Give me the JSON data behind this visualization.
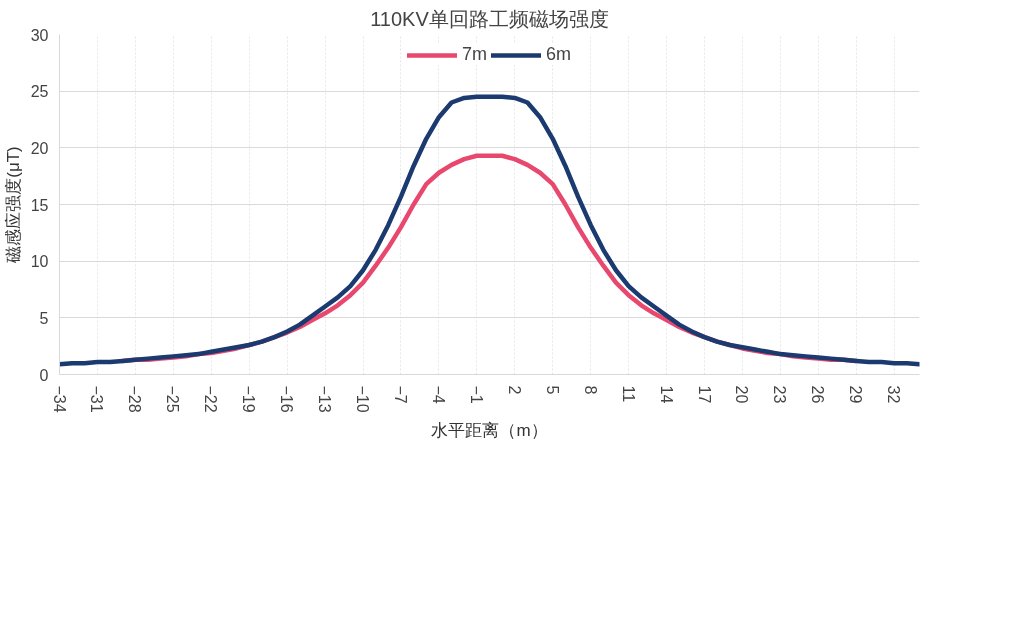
{
  "chart_data": {
    "type": "line",
    "title": "110KV单回路工频磁场强度",
    "xlabel": "水平距离（m）",
    "ylabel": "磁感应强度(μT)",
    "x": [
      -34,
      -33,
      -32,
      -31,
      -30,
      -29,
      -28,
      -27,
      -26,
      -25,
      -24,
      -23,
      -22,
      -21,
      -20,
      -19,
      -18,
      -17,
      -16,
      -15,
      -14,
      -13,
      -12,
      -11,
      -10,
      -9,
      -8,
      -7,
      -6,
      -5,
      -4,
      -3,
      -2,
      -1,
      0,
      1,
      2,
      3,
      4,
      5,
      6,
      7,
      8,
      9,
      10,
      11,
      12,
      13,
      14,
      15,
      16,
      17,
      18,
      19,
      20,
      21,
      22,
      23,
      24,
      25,
      26,
      27,
      28,
      29,
      30,
      31,
      32,
      33,
      34
    ],
    "series": [
      {
        "name": "7m",
        "color": "#e8476e",
        "values": [
          null,
          null,
          null,
          null,
          null,
          1.2,
          1.3,
          1.3,
          1.4,
          1.5,
          1.6,
          1.8,
          1.9,
          2.1,
          2.3,
          2.6,
          2.9,
          3.3,
          3.7,
          4.2,
          4.8,
          5.4,
          6.1,
          7.0,
          8.1,
          9.6,
          11.2,
          13.0,
          15.0,
          16.8,
          17.8,
          18.5,
          19.0,
          19.3,
          19.3,
          19.3,
          19.0,
          18.5,
          17.8,
          16.8,
          15.0,
          13.0,
          11.2,
          9.6,
          8.1,
          7.0,
          6.1,
          5.4,
          4.8,
          4.2,
          3.7,
          3.3,
          2.9,
          2.6,
          2.3,
          2.1,
          1.9,
          1.8,
          1.6,
          1.5,
          1.4,
          1.3,
          1.3,
          1.2,
          null,
          null,
          null,
          null,
          null
        ]
      },
      {
        "name": "6m",
        "color": "#1b3a6f",
        "values": [
          0.9,
          1.0,
          1.0,
          1.1,
          1.1,
          1.2,
          1.3,
          1.4,
          1.5,
          1.6,
          1.7,
          1.8,
          2.0,
          2.2,
          2.4,
          2.6,
          2.9,
          3.3,
          3.8,
          4.4,
          5.2,
          6.0,
          6.8,
          7.8,
          9.2,
          11.0,
          13.2,
          15.7,
          18.4,
          20.8,
          22.7,
          24.0,
          24.4,
          24.5,
          24.5,
          24.5,
          24.4,
          24.0,
          22.7,
          20.8,
          18.4,
          15.7,
          13.2,
          11.0,
          9.2,
          7.8,
          6.8,
          6.0,
          5.2,
          4.4,
          3.8,
          3.3,
          2.9,
          2.6,
          2.4,
          2.2,
          2.0,
          1.8,
          1.7,
          1.6,
          1.5,
          1.4,
          1.3,
          1.2,
          1.1,
          1.1,
          1.0,
          1.0,
          0.9
        ]
      }
    ],
    "xlim": [
      -34,
      34
    ],
    "xticks": [
      -34,
      -31,
      -28,
      -25,
      -22,
      -19,
      -16,
      -13,
      -10,
      -7,
      -4,
      -1,
      2,
      5,
      8,
      11,
      14,
      17,
      20,
      23,
      26,
      29,
      32
    ],
    "ylim": [
      0,
      30
    ],
    "yticks": [
      0,
      5,
      10,
      15,
      20,
      25,
      30
    ],
    "grid": true,
    "legend": "top",
    "marker": "none",
    "line_style": "solid"
  }
}
